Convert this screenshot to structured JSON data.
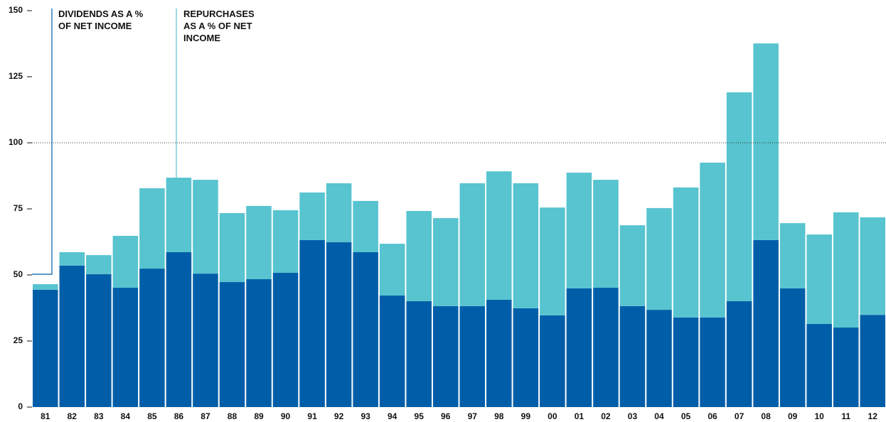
{
  "chart_data": {
    "type": "stacked_bar",
    "categories": [
      "81",
      "82",
      "83",
      "84",
      "85",
      "86",
      "87",
      "88",
      "89",
      "90",
      "91",
      "92",
      "93",
      "94",
      "95",
      "96",
      "97",
      "98",
      "99",
      "00",
      "01",
      "02",
      "03",
      "04",
      "05",
      "06",
      "07",
      "08",
      "09",
      "10",
      "11",
      "12"
    ],
    "series": [
      {
        "name": "DIVIDENDS AS A % OF NET INCOME",
        "color": "#005ea8",
        "values": [
          44.4,
          53.5,
          50.3,
          45.2,
          52.4,
          58.6,
          50.5,
          47.3,
          48.4,
          50.8,
          63.2,
          62.4,
          58.6,
          42.2,
          40.1,
          38.2,
          38.2,
          40.6,
          37.4,
          34.7,
          44.9,
          45.2,
          38.2,
          36.8,
          33.9,
          33.9,
          40.1,
          63.2,
          44.9,
          31.5,
          30.1,
          34.9
        ]
      },
      {
        "name": "REPURCHASES AS A % OF NET INCOME",
        "color": "#57c4cf",
        "values": [
          2.1,
          5.1,
          7.2,
          19.6,
          30.4,
          28.2,
          35.5,
          26.1,
          27.7,
          23.7,
          18,
          22.3,
          19.4,
          19.6,
          34.1,
          33.3,
          46.5,
          48.6,
          47.3,
          40.8,
          43.8,
          40.8,
          30.6,
          38.5,
          49.2,
          58.6,
          79,
          74.4,
          24.7,
          33.8,
          43.6,
          36.9
        ]
      }
    ],
    "ylim": [
      0,
      150
    ],
    "yticks": [
      0,
      25,
      50,
      75,
      100,
      125,
      150
    ],
    "reference_line": 100
  }
}
